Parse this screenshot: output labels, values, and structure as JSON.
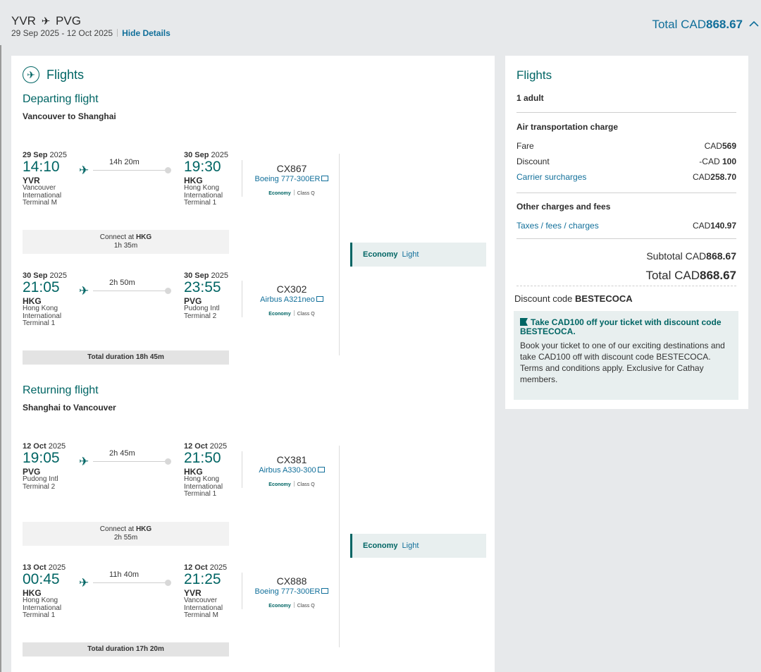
{
  "header": {
    "origin": "YVR",
    "destination": "PVG",
    "arrow_glyph": "✈",
    "dates": "29 Sep 2025 - 12 Oct 2025",
    "hide_details": "Hide Details",
    "total_prefix": "Total CAD",
    "total_amount": "868.67"
  },
  "flights": {
    "title": "Flights",
    "departing": {
      "title": "Departing flight",
      "subtitle": "Vancouver to Shanghai",
      "segments": [
        {
          "dep_date_b": "29 Sep",
          "dep_year": "2025",
          "dep_time": "14:10",
          "dep_code": "YVR",
          "dep_airport": "Vancouver International Terminal M",
          "duration": "14h 20m",
          "arr_date_b": "30 Sep",
          "arr_year": "2025",
          "arr_time": "19:30",
          "arr_code": "HKG",
          "arr_airport": "Hong Kong International Terminal 1",
          "flight_no": "CX867",
          "aircraft": "Boeing 777-300ER",
          "cabin": "Economy",
          "class": "Class Q"
        },
        {
          "dep_date_b": "30 Sep",
          "dep_year": "2025",
          "dep_time": "21:05",
          "dep_code": "HKG",
          "dep_airport": "Hong Kong International Terminal 1",
          "duration": "2h 50m",
          "arr_date_b": "30 Sep",
          "arr_year": "2025",
          "arr_time": "23:55",
          "arr_code": "PVG",
          "arr_airport": "Pudong Intl Terminal 2",
          "flight_no": "CX302",
          "aircraft": "Airbus A321neo",
          "cabin": "Economy",
          "class": "Class Q"
        }
      ],
      "connect_prefix": "Connect at",
      "connect_code": "HKG",
      "connect_time": "1h 35m",
      "total_duration": "Total duration  18h 45m",
      "fare_cabin": "Economy",
      "fare_type": "Light"
    },
    "returning": {
      "title": "Returning flight",
      "subtitle": "Shanghai to Vancouver",
      "segments": [
        {
          "dep_date_b": "12 Oct",
          "dep_year": "2025",
          "dep_time": "19:05",
          "dep_code": "PVG",
          "dep_airport": "Pudong Intl Terminal 2",
          "duration": "2h 45m",
          "arr_date_b": "12 Oct",
          "arr_year": "2025",
          "arr_time": "21:50",
          "arr_code": "HKG",
          "arr_airport": "Hong Kong International Terminal 1",
          "flight_no": "CX381",
          "aircraft": "Airbus A330-300",
          "cabin": "Economy",
          "class": "Class Q"
        },
        {
          "dep_date_b": "13 Oct",
          "dep_year": "2025",
          "dep_time": "00:45",
          "dep_code": "HKG",
          "dep_airport": "Hong Kong International Terminal 1",
          "duration": "11h 40m",
          "arr_date_b": "12 Oct",
          "arr_year": "2025",
          "arr_time": "21:25",
          "arr_code": "YVR",
          "arr_airport": "Vancouver International Terminal M",
          "flight_no": "CX888",
          "aircraft": "Boeing 777-300ER",
          "cabin": "Economy",
          "class": "Class Q"
        }
      ],
      "connect_prefix": "Connect at",
      "connect_code": "HKG",
      "connect_time": "2h 55m",
      "total_duration": "Total duration  17h 20m",
      "fare_cabin": "Economy",
      "fare_type": "Light"
    }
  },
  "summary": {
    "title": "Flights",
    "passengers": "1 adult",
    "air_transport_heading": "Air transportation charge",
    "fare_label": "Fare",
    "fare_cur": "CAD",
    "fare_amount": "569",
    "discount_label": "Discount",
    "discount_cur": "-CAD",
    "discount_amount": "100",
    "surcharge_label": "Carrier surcharges",
    "surcharge_cur": "CAD",
    "surcharge_amount": "258.70",
    "other_heading": "Other charges and fees",
    "taxes_label": "Taxes / fees / charges",
    "taxes_cur": "CAD",
    "taxes_amount": "140.97",
    "subtotal_prefix": "Subtotal CAD",
    "subtotal_amount": "868.67",
    "total_prefix": "Total CAD",
    "total_amount": "868.67",
    "discount_code_prefix": "Discount code",
    "discount_code": "BESTECOCA",
    "promo_title": "Take CAD100 off your ticket with discount code BESTECOCA.",
    "promo_body": "Book your ticket to one of our exciting destinations and take CAD100 off with discount code BESTECOCA. Terms and conditions apply. Exclusive for Cathay members."
  }
}
